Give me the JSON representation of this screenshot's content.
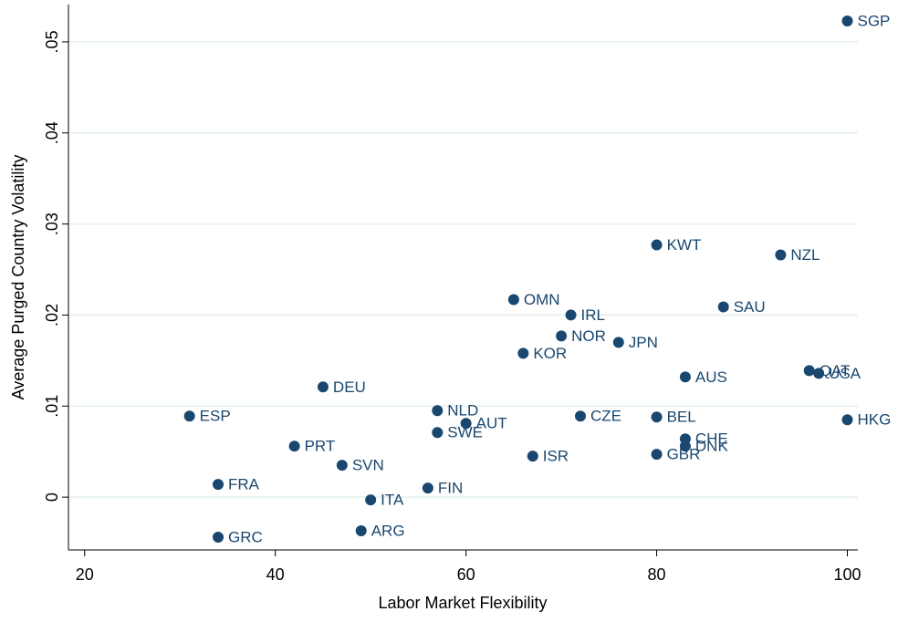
{
  "chart_data": {
    "type": "scatter",
    "x_label": "Labor Market Flexibility",
    "y_label": "Average Purged Country Volatility",
    "color": "#1a476f",
    "grid": true,
    "xlim": [
      18.3,
      101.1
    ],
    "ylim": [
      -0.0058,
      0.0541
    ],
    "xticks": [
      20,
      40,
      60,
      80,
      100
    ],
    "yticks": [
      0,
      {
        "value": 0.01,
        "label": ".01"
      },
      {
        "value": 0.02,
        "label": ".02"
      },
      {
        "value": 0.03,
        "label": ".03"
      },
      {
        "value": 0.04,
        "label": ".04"
      },
      {
        "value": 0.05,
        "label": ".05"
      }
    ],
    "labels": [
      "SGP",
      "KWT",
      "NZL",
      "OMN",
      "IRL",
      "SAU",
      "NOR",
      "JPN",
      "KOR",
      "QAT",
      "USA",
      "AUS",
      "DEU",
      "ESP",
      "NLD",
      "AUT",
      "SWE",
      "CZE",
      "BEL",
      "HKG",
      "CHE",
      "DNK",
      "PRT",
      "SVN",
      "ISR",
      "GBR",
      "FRA",
      "FIN",
      "ITA",
      "ARG",
      "GRC"
    ],
    "x": [
      100,
      80,
      93,
      65,
      71,
      87,
      70,
      76,
      66,
      96,
      97,
      83,
      45,
      31,
      57,
      60,
      57,
      72,
      80,
      100,
      83,
      83,
      42,
      47,
      67,
      80,
      34,
      56,
      50,
      49,
      34
    ],
    "values": [
      0.0523,
      0.0277,
      0.0266,
      0.0217,
      0.02,
      0.0209,
      0.0177,
      0.017,
      0.0158,
      0.0139,
      0.0136,
      0.0132,
      0.0121,
      0.0089,
      0.0095,
      0.0081,
      0.0071,
      0.0089,
      0.0088,
      0.0085,
      0.0064,
      0.0056,
      0.0056,
      0.0035,
      0.0045,
      0.0047,
      0.0014,
      0.001,
      -0.0003,
      -0.0037,
      -0.0044
    ]
  }
}
